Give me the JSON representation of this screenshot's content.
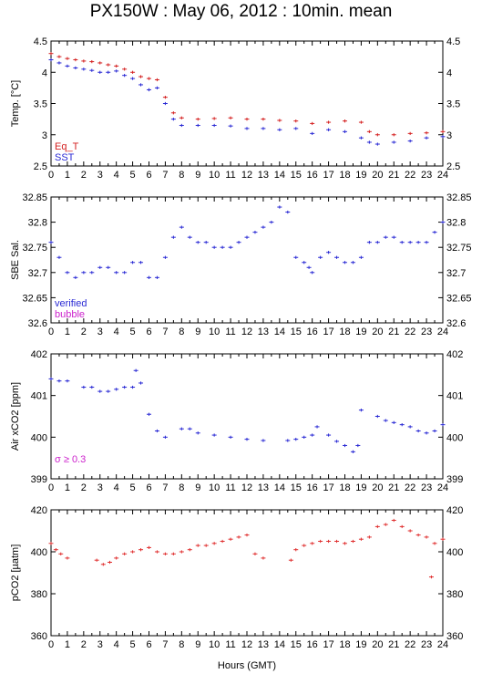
{
  "title": "PX150W : May 06, 2012 : 10min. mean",
  "xlabel": "Hours (GMT)",
  "x_ticks": [
    0,
    1,
    2,
    3,
    4,
    5,
    6,
    7,
    8,
    9,
    10,
    11,
    12,
    13,
    14,
    15,
    16,
    17,
    18,
    19,
    20,
    21,
    22,
    23,
    24
  ],
  "colors": {
    "eq_t": "#d42020",
    "sst": "#2a2ad4",
    "verified": "#2a2ad4",
    "bubble": "#cc22cc",
    "pco2": "#e03030",
    "sigma": "#cc22cc"
  },
  "chart_data": [
    {
      "type": "scatter",
      "ylabel": "Temp. [°C]",
      "ylim": [
        2.5,
        4.5
      ],
      "yticks": [
        "2.5",
        "3",
        "3.5",
        "4",
        "4.5"
      ],
      "legend_placement": "bottom-left",
      "legend": [
        "Eq_T",
        "SST"
      ],
      "series": [
        {
          "name": "Eq_T",
          "color": "#d42020",
          "x": [
            0,
            0.5,
            1,
            1.5,
            2,
            2.5,
            3,
            3.5,
            4,
            4.5,
            5,
            5.5,
            6,
            6.5,
            7,
            7.5,
            8,
            9,
            10,
            11,
            12,
            13,
            14,
            15,
            16,
            17,
            18,
            19,
            19.5,
            20,
            21,
            22,
            23,
            24
          ],
          "y": [
            4.3,
            4.25,
            4.22,
            4.2,
            4.18,
            4.17,
            4.15,
            4.12,
            4.1,
            4.05,
            4.0,
            3.93,
            3.9,
            3.88,
            3.6,
            3.35,
            3.27,
            3.25,
            3.26,
            3.27,
            3.25,
            3.25,
            3.23,
            3.22,
            3.18,
            3.2,
            3.22,
            3.2,
            3.05,
            3.0,
            3.0,
            3.02,
            3.03,
            3.05
          ]
        },
        {
          "name": "SST",
          "color": "#2a2ad4",
          "x": [
            0,
            0.5,
            1,
            1.5,
            2,
            2.5,
            3,
            3.5,
            4,
            4.5,
            5,
            5.5,
            6,
            6.5,
            7,
            7.5,
            8,
            9,
            10,
            11,
            12,
            13,
            14,
            15,
            16,
            17,
            18,
            19,
            19.5,
            20,
            21,
            22,
            23,
            24
          ],
          "y": [
            4.2,
            4.15,
            4.1,
            4.07,
            4.05,
            4.03,
            4.0,
            4.0,
            4.02,
            3.95,
            3.9,
            3.8,
            3.72,
            3.75,
            3.5,
            3.25,
            3.15,
            3.15,
            3.15,
            3.14,
            3.1,
            3.1,
            3.08,
            3.1,
            3.02,
            3.08,
            3.05,
            2.95,
            2.88,
            2.85,
            2.88,
            2.9,
            2.95,
            2.97
          ]
        }
      ]
    },
    {
      "type": "scatter",
      "ylabel": "SBE Sal.",
      "ylim": [
        32.6,
        32.85
      ],
      "yticks": [
        "32.6",
        "32.65",
        "32.7",
        "32.75",
        "32.8",
        "32.85"
      ],
      "legend_placement": "bottom-left",
      "legend": [
        "verified",
        "bubble"
      ],
      "series": [
        {
          "name": "verified",
          "color": "#2a2ad4",
          "x": [
            0,
            0.5,
            1,
            1.5,
            2,
            2.5,
            3,
            3.5,
            4,
            4.5,
            5,
            5.5,
            6,
            6.5,
            7,
            7.5,
            8,
            8.5,
            9,
            9.5,
            10,
            10.5,
            11,
            11.5,
            12,
            12.5,
            13,
            13.5,
            14,
            14.5,
            15,
            15.5,
            15.8,
            16,
            16.5,
            17,
            17.5,
            18,
            18.5,
            19,
            19.5,
            20,
            20.5,
            21,
            21.5,
            22,
            22.5,
            23,
            23.5,
            24
          ],
          "y": [
            32.76,
            32.73,
            32.7,
            32.69,
            32.7,
            32.7,
            32.71,
            32.71,
            32.7,
            32.7,
            32.72,
            32.72,
            32.69,
            32.69,
            32.73,
            32.77,
            32.79,
            32.77,
            32.76,
            32.76,
            32.75,
            32.75,
            32.75,
            32.76,
            32.77,
            32.78,
            32.79,
            32.8,
            32.83,
            32.82,
            32.73,
            32.72,
            32.71,
            32.7,
            32.73,
            32.74,
            32.73,
            32.72,
            32.72,
            32.73,
            32.76,
            32.76,
            32.77,
            32.77,
            32.76,
            32.76,
            32.76,
            32.76,
            32.78,
            32.8
          ]
        }
      ]
    },
    {
      "type": "scatter",
      "ylabel": "Air xCO2 [ppm]",
      "ylim": [
        399,
        402
      ],
      "yticks": [
        "399",
        "400",
        "401",
        "402"
      ],
      "annotation": "σ ≥ 0.3",
      "series": [
        {
          "color": "#2a2ad4",
          "x": [
            0,
            0.5,
            1,
            2,
            2.5,
            3,
            3.5,
            4,
            4.5,
            5,
            5.2,
            5.5,
            6,
            6.5,
            7,
            8,
            8.5,
            9,
            10,
            11,
            12,
            13,
            14.5,
            15,
            15.5,
            16,
            16.3,
            17,
            17.5,
            18,
            18.5,
            18.8,
            19,
            20,
            20.5,
            21,
            21.5,
            22,
            22.5,
            23,
            23.5,
            24
          ],
          "y": [
            401.4,
            401.35,
            401.35,
            401.2,
            401.2,
            401.1,
            401.1,
            401.15,
            401.2,
            401.2,
            401.6,
            401.3,
            400.55,
            400.15,
            400.0,
            400.2,
            400.2,
            400.1,
            400.05,
            400.0,
            399.95,
            399.92,
            399.92,
            399.95,
            400.0,
            400.05,
            400.25,
            400.05,
            399.9,
            399.8,
            399.65,
            399.8,
            400.65,
            400.5,
            400.4,
            400.35,
            400.3,
            400.25,
            400.15,
            400.1,
            400.15,
            400.3
          ]
        }
      ]
    },
    {
      "type": "scatter",
      "ylabel": "pCO2 [µatm]",
      "ylim": [
        360,
        420
      ],
      "yticks": [
        "360",
        "380",
        "400",
        "420"
      ],
      "series": [
        {
          "color": "#e03030",
          "x": [
            0,
            0.3,
            0.6,
            1,
            2.8,
            3.2,
            3.6,
            4,
            4.5,
            5,
            5.5,
            6,
            6.5,
            7,
            7.5,
            8,
            8.5,
            9,
            9.5,
            10,
            10.5,
            11,
            11.5,
            12,
            12.5,
            13,
            14.7,
            15,
            15.5,
            16,
            16.5,
            17,
            17.5,
            18,
            18.5,
            19,
            19.5,
            20,
            20.5,
            21,
            21.5,
            22,
            22.5,
            23,
            23.3,
            23.5,
            24
          ],
          "y": [
            404,
            401,
            399,
            397,
            396,
            394,
            395,
            397,
            399,
            400,
            401,
            402,
            400,
            399,
            399,
            400,
            401,
            403,
            403,
            404,
            405,
            406,
            407,
            408,
            399,
            397,
            396,
            401,
            403,
            404,
            405,
            405,
            405,
            404,
            405,
            406,
            407,
            412,
            413,
            415,
            412,
            410,
            408,
            407,
            388,
            404,
            406
          ]
        }
      ]
    }
  ]
}
